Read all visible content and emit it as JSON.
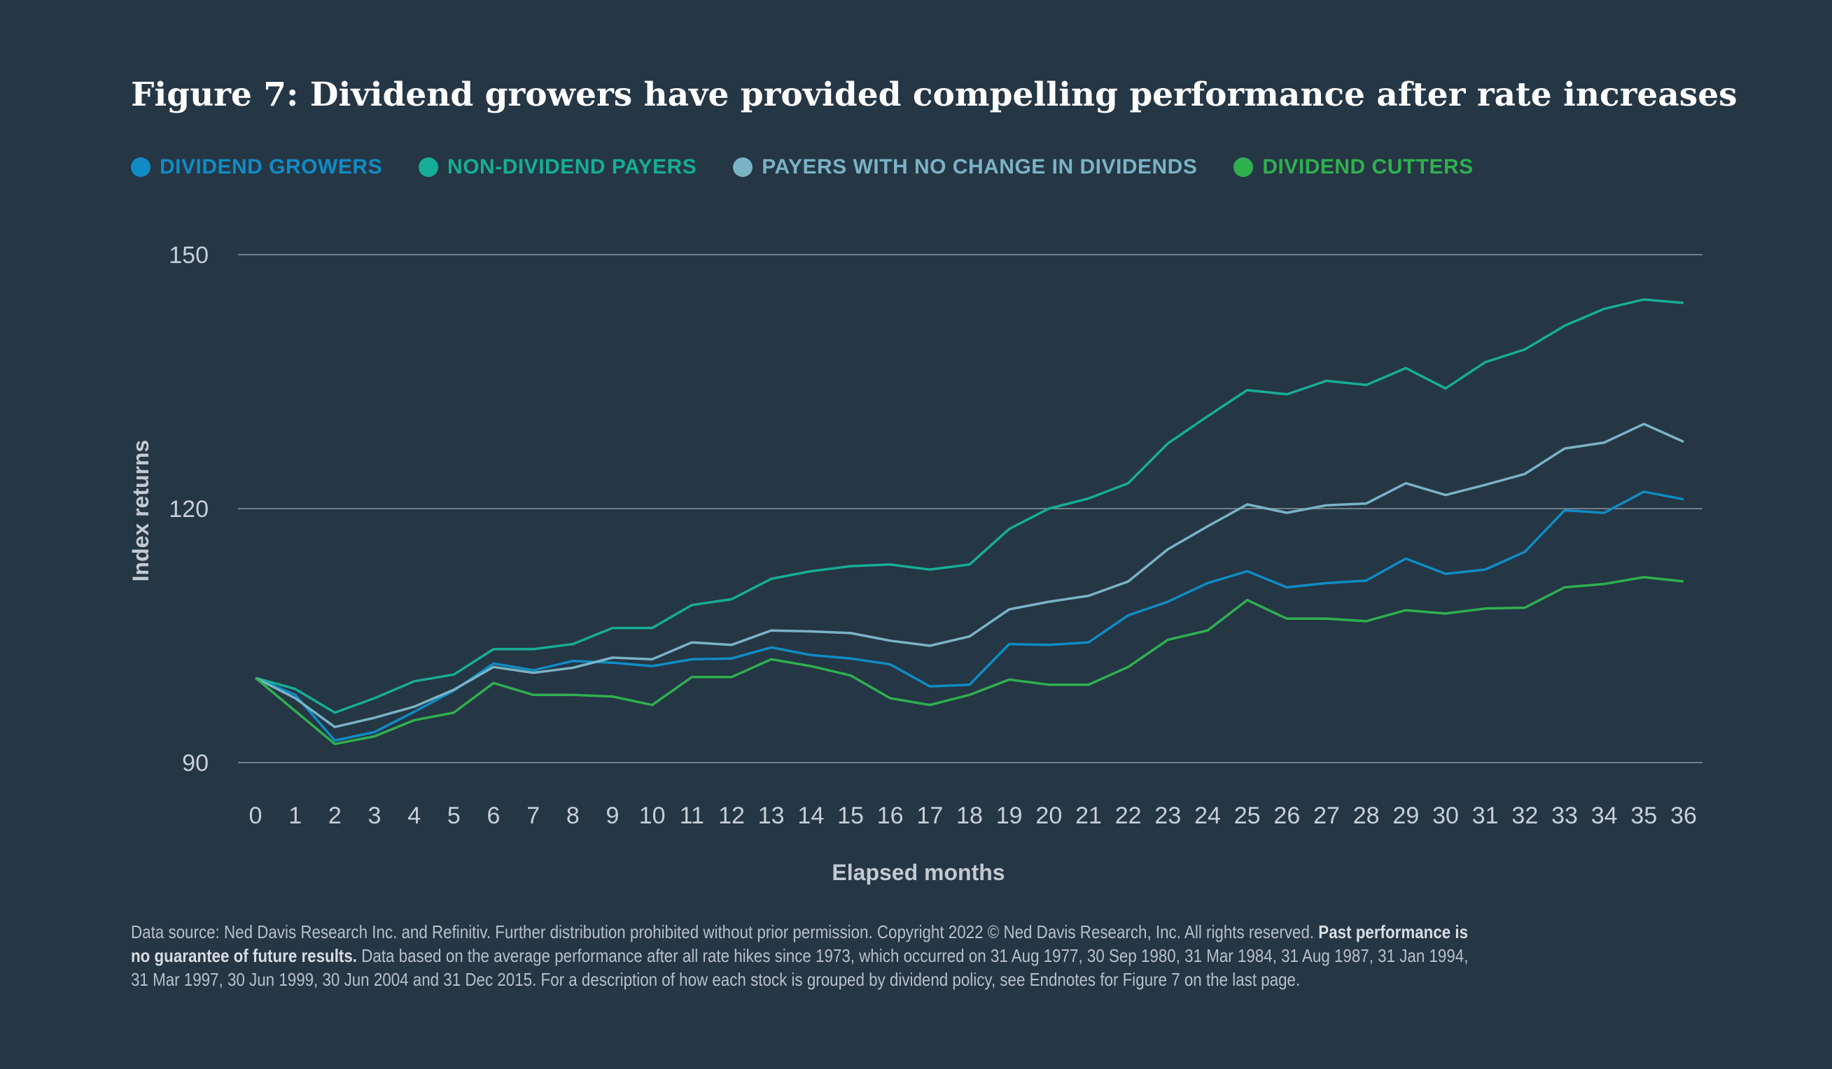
{
  "title": "Figure 7: Dividend growers have provided compelling performance after rate increases",
  "colors": {
    "background": "#253645",
    "gridline": "#8a97a3",
    "tick_text": "#c8cfd6",
    "axis_label": "#c3cad1"
  },
  "chart_data": {
    "type": "line",
    "title": "Figure 7: Dividend growers have provided compelling performance after rate increases",
    "xlabel": "Elapsed months",
    "ylabel": "Index returns",
    "x": [
      0,
      1,
      2,
      3,
      4,
      5,
      6,
      7,
      8,
      9,
      10,
      11,
      12,
      13,
      14,
      15,
      16,
      17,
      18,
      19,
      20,
      21,
      22,
      23,
      24,
      25,
      26,
      27,
      28,
      29,
      30,
      31,
      32,
      33,
      34,
      35,
      36
    ],
    "xticks": [
      "0",
      "1",
      "2",
      "3",
      "4",
      "5",
      "6",
      "7",
      "8",
      "9",
      "10",
      "11",
      "12",
      "13",
      "14",
      "15",
      "16",
      "17",
      "18",
      "19",
      "20",
      "21",
      "22",
      "23",
      "24",
      "25",
      "26",
      "27",
      "28",
      "29",
      "30",
      "31",
      "32",
      "33",
      "34",
      "35",
      "36"
    ],
    "ylim": [
      90,
      150
    ],
    "yticks": [
      "90",
      "120",
      "150"
    ],
    "grid": "horizontal",
    "legend": "top-left",
    "series": [
      {
        "name": "DIVIDEND GROWERS",
        "color": "#0f8cc4",
        "values": [
          100,
          98.0,
          92.6,
          93.6,
          96.0,
          98.5,
          101.7,
          100.9,
          102.0,
          101.8,
          101.4,
          102.2,
          102.3,
          103.6,
          102.7,
          102.3,
          101.6,
          99.0,
          99.2,
          104.0,
          103.9,
          104.2,
          107.4,
          109.0,
          111.2,
          112.6,
          110.7,
          111.2,
          111.5,
          114.1,
          112.3,
          112.8,
          114.9,
          119.8,
          119.5,
          122.0,
          121.1
        ]
      },
      {
        "name": "NON-DIVIDEND PAYERS",
        "color": "#15ae96",
        "values": [
          100,
          98.7,
          95.9,
          97.6,
          99.6,
          100.4,
          103.4,
          103.4,
          104.0,
          105.9,
          105.9,
          108.6,
          109.3,
          111.7,
          112.6,
          113.2,
          113.4,
          112.8,
          113.4,
          117.6,
          120.0,
          121.2,
          123.0,
          127.7,
          130.9,
          134.0,
          133.5,
          135.1,
          134.6,
          136.6,
          134.2,
          137.3,
          138.8,
          141.6,
          143.6,
          144.7,
          144.3
        ]
      },
      {
        "name": "PAYERS WITH NO CHANGE IN DIVIDENDS",
        "color": "#7ab3c5",
        "values": [
          100,
          97.6,
          94.2,
          95.3,
          96.6,
          98.6,
          101.3,
          100.6,
          101.2,
          102.4,
          102.2,
          104.2,
          103.9,
          105.6,
          105.5,
          105.3,
          104.4,
          103.8,
          104.9,
          108.1,
          109.0,
          109.7,
          111.4,
          115.2,
          117.9,
          120.5,
          119.5,
          120.4,
          120.6,
          123.0,
          121.6,
          122.8,
          124.1,
          127.1,
          127.8,
          130.0,
          127.9
        ]
      },
      {
        "name": "DIVIDEND CUTTERS",
        "color": "#2fb04f",
        "values": [
          100,
          96.1,
          92.2,
          93.1,
          95.0,
          95.9,
          99.4,
          98.0,
          98.0,
          97.8,
          96.8,
          100.1,
          100.1,
          102.2,
          101.4,
          100.3,
          97.6,
          96.8,
          98.0,
          99.8,
          99.2,
          99.2,
          101.3,
          104.5,
          105.6,
          109.2,
          107.0,
          107.0,
          106.7,
          108.0,
          107.6,
          108.2,
          108.3,
          110.7,
          111.1,
          111.9,
          111.4
        ]
      }
    ]
  },
  "footnote": {
    "text": "Data source: Ned Davis Research Inc. and Refinitiv. Further distribution prohibited without prior permission. Copyright 2022 © Ned Davis Research, Inc. All rights reserved. ",
    "bold": "Past performance is no guarantee of future results.",
    "text2": " Data based on the average performance after all rate hikes since 1973, which occurred on 31 Aug 1977, 30 Sep 1980, 31 Mar 1984, 31 Aug 1987, 31 Jan 1994, 31 Mar 1997, 30 Jun 1999, 30 Jun 2004 and 31 Dec 2015. For a description of how each stock is grouped by dividend policy, see Endnotes for Figure 7 on the last page."
  }
}
